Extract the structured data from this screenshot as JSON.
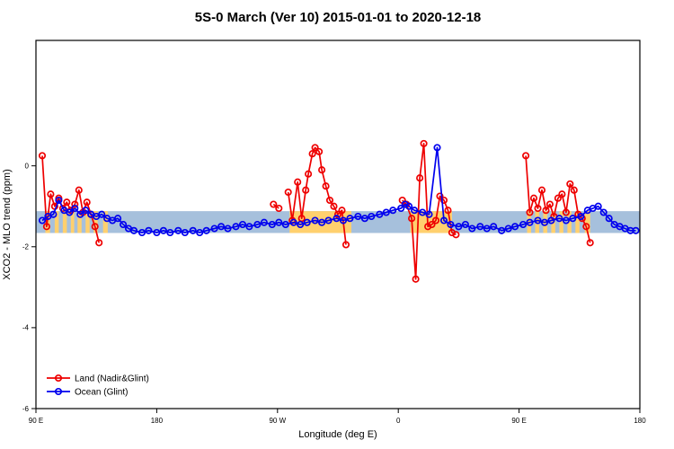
{
  "title": "5S-0 March (Ver 10)   2015-01-01 to 2020-12-18",
  "chart_data": {
    "type": "line",
    "title": "5S-0 March (Ver 10)   2015-01-01 to 2020-12-18",
    "xlabel": "Longitude (deg E)",
    "ylabel": "XCO2 - MLO trend (ppm)",
    "x_axis_note": "longitude wraps eastward: 90E, 180, 90W, 0, 90E, 180",
    "xlim": [
      90,
      540
    ],
    "ylim": [
      -6,
      3.1
    ],
    "grid": false,
    "x_ticks": [
      {
        "lon": 90,
        "label": "90 E"
      },
      {
        "lon": 180,
        "label": "180"
      },
      {
        "lon": 270,
        "label": "90 W"
      },
      {
        "lon": 360,
        "label": "0"
      },
      {
        "lon": 450,
        "label": "90 E"
      },
      {
        "lon": 540,
        "label": "180"
      }
    ],
    "y_ticks": [
      {
        "v": 0,
        "label": "0"
      },
      {
        "v": -2,
        "label": "-2"
      },
      {
        "v": -4,
        "label": "-4"
      },
      {
        "v": -6,
        "label": "-6"
      }
    ],
    "band": {
      "description": "land/ocean surface strip along 5S-0 latitude",
      "y_range": [
        -1.12,
        -1.66
      ],
      "ocean_color": "#a6c0dc",
      "land_color": "#ffd06e",
      "land_segments_lon": [
        [
          97,
          100.5
        ],
        [
          104,
          107
        ],
        [
          110,
          113
        ],
        [
          116,
          118.5
        ],
        [
          121,
          124
        ],
        [
          127,
          130
        ],
        [
          133,
          136
        ],
        [
          140,
          143.5
        ],
        [
          279,
          325
        ],
        [
          369,
          400
        ],
        [
          456,
          459
        ],
        [
          462,
          465
        ],
        [
          468,
          471
        ],
        [
          474,
          477
        ],
        [
          480,
          483
        ],
        [
          486,
          489
        ],
        [
          492,
          495
        ],
        [
          499,
          503
        ]
      ]
    },
    "legend": {
      "position": "bottom-left"
    },
    "series": [
      {
        "name": "Land (Nadir&Glint)",
        "color": "#ee0000",
        "clusters": [
          [
            [
              94.7,
              0.25
            ],
            [
              98,
              -1.5
            ],
            [
              101,
              -0.7
            ],
            [
              104,
              -1.0
            ],
            [
              107,
              -0.8
            ],
            [
              110,
              -1.05
            ],
            [
              113,
              -0.9
            ],
            [
              116,
              -1.1
            ],
            [
              119,
              -0.95
            ],
            [
              122,
              -0.6
            ],
            [
              125,
              -1.15
            ],
            [
              128,
              -0.9
            ],
            [
              131,
              -1.2
            ],
            [
              134,
              -1.5
            ],
            [
              137,
              -1.9
            ]
          ],
          [
            [
              267,
              -0.95
            ],
            [
              271,
              -1.05
            ]
          ],
          [
            [
              278,
              -0.65
            ],
            [
              281,
              -1.35
            ],
            [
              285,
              -0.4
            ],
            [
              288,
              -1.3
            ],
            [
              291,
              -0.6
            ],
            [
              293,
              -0.2
            ],
            [
              296,
              0.3
            ],
            [
              298,
              0.45
            ],
            [
              301,
              0.35
            ],
            [
              303,
              -0.1
            ],
            [
              306,
              -0.5
            ],
            [
              309,
              -0.85
            ],
            [
              312,
              -1.0
            ],
            [
              315,
              -1.2
            ],
            [
              318,
              -1.1
            ],
            [
              321,
              -1.95
            ]
          ],
          [
            [
              363,
              -0.85
            ],
            [
              366,
              -0.95
            ],
            [
              370,
              -1.3
            ],
            [
              373,
              -2.8
            ],
            [
              376,
              -0.3
            ],
            [
              379,
              0.55
            ],
            [
              382,
              -1.5
            ],
            [
              385,
              -1.45
            ],
            [
              388,
              -1.35
            ],
            [
              391,
              -0.75
            ],
            [
              394,
              -0.85
            ],
            [
              397,
              -1.1
            ],
            [
              400,
              -1.65
            ],
            [
              403,
              -1.7
            ]
          ],
          [
            [
              455,
              0.25
            ],
            [
              458,
              -1.15
            ],
            [
              461,
              -0.8
            ],
            [
              464,
              -1.05
            ],
            [
              467,
              -0.6
            ],
            [
              470,
              -1.1
            ],
            [
              473,
              -0.95
            ],
            [
              476,
              -1.25
            ],
            [
              479,
              -0.8
            ],
            [
              482,
              -0.7
            ],
            [
              485,
              -1.15
            ],
            [
              488,
              -0.45
            ],
            [
              491,
              -0.6
            ],
            [
              494,
              -1.2
            ],
            [
              497,
              -1.3
            ],
            [
              500,
              -1.5
            ],
            [
              503,
              -1.9
            ]
          ]
        ]
      },
      {
        "name": "Ocean (Glint)",
        "color": "#0000ee",
        "clusters": [
          [
            [
              94.7,
              -1.35
            ],
            [
              99,
              -1.25
            ],
            [
              103,
              -1.2
            ],
            [
              107,
              -0.85
            ],
            [
              111,
              -1.1
            ],
            [
              115,
              -1.15
            ],
            [
              119,
              -1.05
            ],
            [
              123,
              -1.2
            ],
            [
              127,
              -1.1
            ],
            [
              131,
              -1.2
            ],
            [
              135,
              -1.25
            ],
            [
              139,
              -1.2
            ],
            [
              143,
              -1.3
            ],
            [
              147,
              -1.35
            ],
            [
              151,
              -1.3
            ],
            [
              155,
              -1.45
            ],
            [
              159,
              -1.55
            ],
            [
              163,
              -1.6
            ],
            [
              169,
              -1.65
            ],
            [
              174,
              -1.6
            ],
            [
              180,
              -1.65
            ],
            [
              185,
              -1.6
            ],
            [
              190,
              -1.65
            ],
            [
              196,
              -1.6
            ],
            [
              201,
              -1.65
            ],
            [
              207,
              -1.6
            ],
            [
              212,
              -1.65
            ],
            [
              217,
              -1.6
            ],
            [
              223,
              -1.55
            ],
            [
              228,
              -1.5
            ],
            [
              233,
              -1.55
            ],
            [
              239,
              -1.5
            ],
            [
              244,
              -1.45
            ],
            [
              249,
              -1.5
            ],
            [
              255,
              -1.45
            ],
            [
              260,
              -1.4
            ],
            [
              266,
              -1.45
            ],
            [
              271,
              -1.4
            ],
            [
              276,
              -1.45
            ],
            [
              282,
              -1.4
            ],
            [
              287,
              -1.45
            ],
            [
              292,
              -1.4
            ],
            [
              298,
              -1.35
            ],
            [
              303,
              -1.4
            ],
            [
              308,
              -1.35
            ],
            [
              314,
              -1.3
            ],
            [
              319,
              -1.35
            ],
            [
              324,
              -1.3
            ],
            [
              330,
              -1.25
            ],
            [
              335,
              -1.3
            ],
            [
              340,
              -1.25
            ],
            [
              346,
              -1.2
            ],
            [
              351,
              -1.15
            ],
            [
              356,
              -1.1
            ],
            [
              362,
              -1.05
            ],
            [
              365,
              -0.95
            ],
            [
              368,
              -1.0
            ],
            [
              372,
              -1.1
            ],
            [
              378,
              -1.15
            ],
            [
              383,
              -1.2
            ],
            [
              389,
              0.45
            ],
            [
              394,
              -1.35
            ],
            [
              399,
              -1.45
            ],
            [
              405,
              -1.5
            ],
            [
              410,
              -1.45
            ],
            [
              415,
              -1.55
            ],
            [
              421,
              -1.5
            ],
            [
              426,
              -1.55
            ],
            [
              431,
              -1.5
            ],
            [
              437,
              -1.6
            ],
            [
              442,
              -1.55
            ],
            [
              447,
              -1.5
            ],
            [
              453,
              -1.45
            ],
            [
              458,
              -1.4
            ],
            [
              464,
              -1.35
            ],
            [
              469,
              -1.4
            ],
            [
              474,
              -1.35
            ],
            [
              480,
              -1.3
            ],
            [
              485,
              -1.35
            ],
            [
              490,
              -1.3
            ],
            [
              496,
              -1.25
            ],
            [
              501,
              -1.1
            ],
            [
              505,
              -1.05
            ],
            [
              509,
              -1.0
            ],
            [
              513,
              -1.15
            ],
            [
              517,
              -1.3
            ],
            [
              521,
              -1.45
            ],
            [
              525,
              -1.5
            ],
            [
              529,
              -1.55
            ],
            [
              533,
              -1.6
            ],
            [
              537,
              -1.6
            ]
          ]
        ]
      }
    ]
  }
}
